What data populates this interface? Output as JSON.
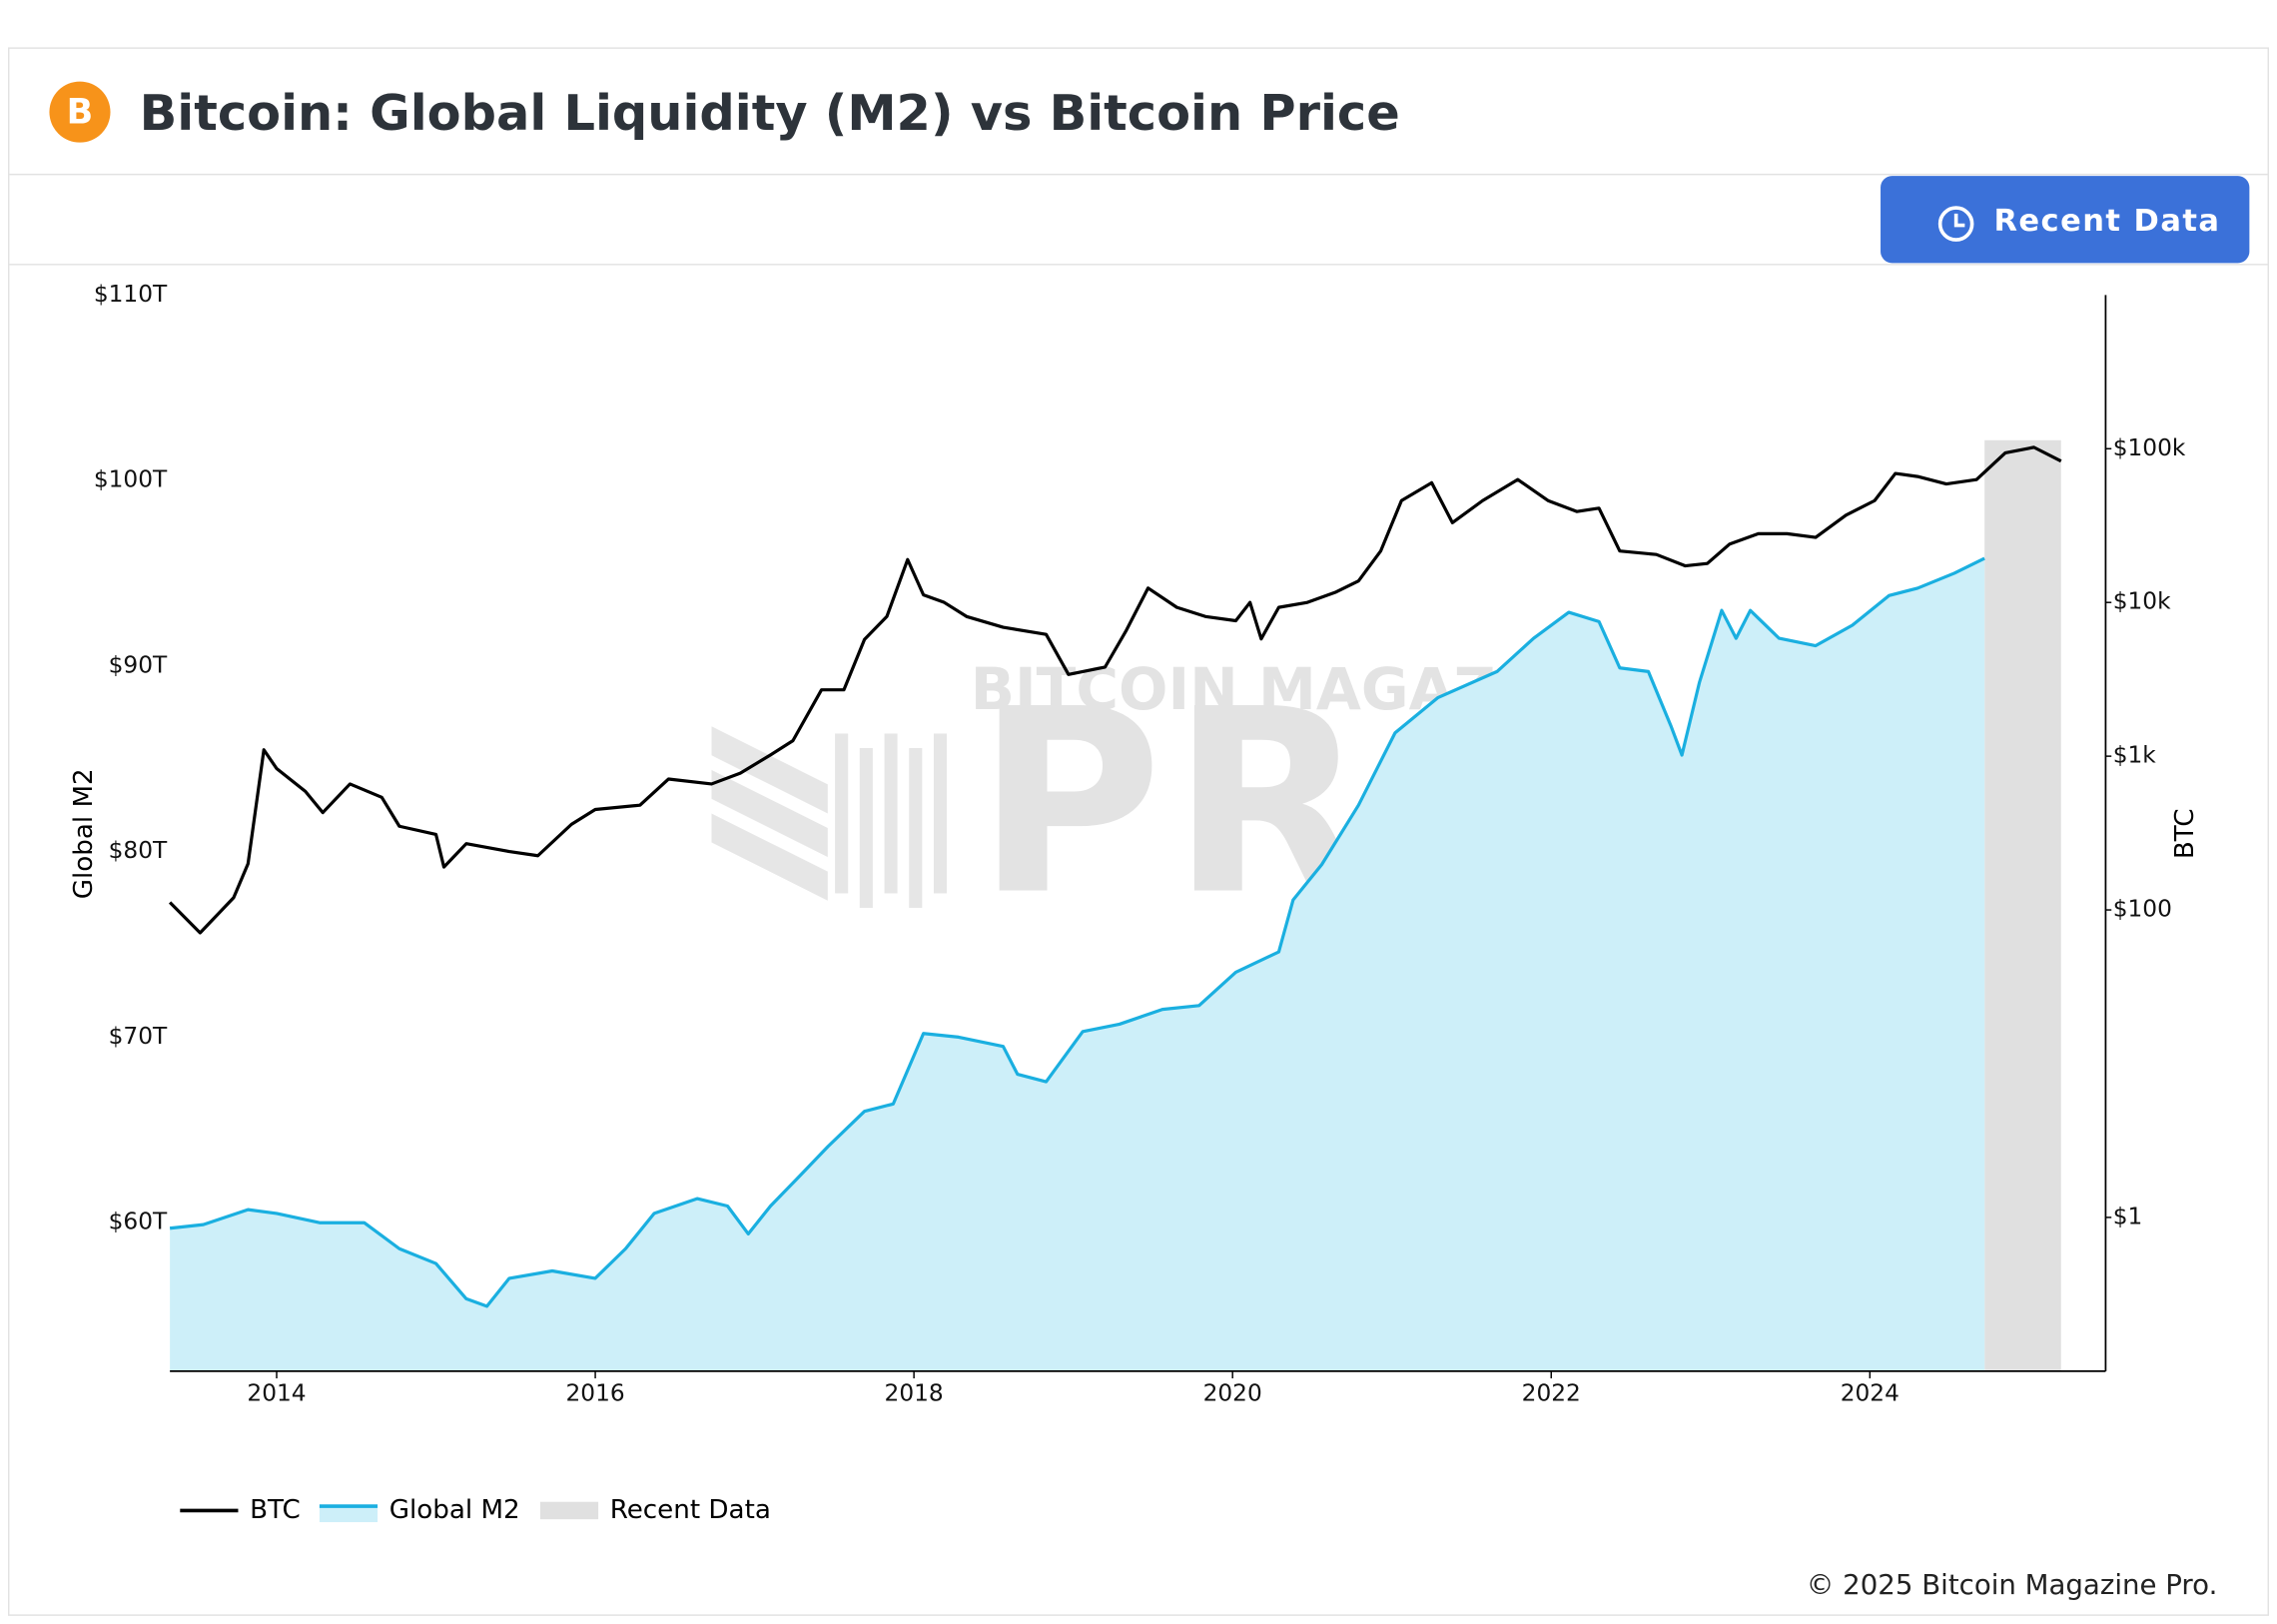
{
  "header": {
    "title": "Bitcoin: Global Liquidity (M2) vs Bitcoin Price",
    "button": "Recent Data"
  },
  "footer": "© 2025 Bitcoin Magazine Pro.",
  "watermark": [
    "BITCOIN MAGAZINE",
    "PRO"
  ],
  "chart_data": {
    "type": "line",
    "ylabel": "Global M2",
    "y2label": "BTC",
    "xlim": [
      2013.33,
      2025.48
    ],
    "xticks": [
      2014,
      2016,
      2018,
      2020,
      2022,
      2024
    ],
    "ylim": [
      52,
      110
    ],
    "yticks": [
      {
        "value": 60,
        "label": "$60T"
      },
      {
        "value": 70,
        "label": "$70T"
      },
      {
        "value": 80,
        "label": "$80T"
      },
      {
        "value": 90,
        "label": "$90T"
      },
      {
        "value": 100,
        "label": "$100T"
      },
      {
        "value": 110,
        "label": "$110T"
      }
    ],
    "y2lim": [
      0.1,
      1000000
    ],
    "y2scale": "log",
    "y2ticks": [
      {
        "value": 1,
        "label": "$1"
      },
      {
        "value": 100,
        "label": "$100"
      },
      {
        "value": 1000,
        "label": "$1k"
      },
      {
        "value": 10000,
        "label": "$10k"
      },
      {
        "value": 100000,
        "label": "$100k"
      }
    ],
    "shaded_region": {
      "name": "Recent Data",
      "x": [
        2024.72,
        2025.2
      ],
      "color": "#e0e0e0"
    },
    "series": [
      {
        "name": "BTC",
        "color": "#000000",
        "axis": "y2",
        "x": [
          2013.33,
          2013.52,
          2013.73,
          2013.82,
          2013.92,
          2014.0,
          2014.18,
          2014.29,
          2014.46,
          2014.66,
          2014.77,
          2015.0,
          2015.05,
          2015.19,
          2015.46,
          2015.64,
          2015.85,
          2016.0,
          2016.28,
          2016.46,
          2016.73,
          2016.91,
          2017.1,
          2017.24,
          2017.42,
          2017.56,
          2017.69,
          2017.83,
          2017.96,
          2018.06,
          2018.19,
          2018.33,
          2018.56,
          2018.83,
          2018.97,
          2019.2,
          2019.33,
          2019.47,
          2019.65,
          2019.83,
          2020.02,
          2020.11,
          2020.18,
          2020.29,
          2020.47,
          2020.65,
          2020.79,
          2020.93,
          2021.06,
          2021.25,
          2021.38,
          2021.57,
          2021.79,
          2021.98,
          2022.16,
          2022.3,
          2022.43,
          2022.66,
          2022.84,
          2022.98,
          2023.12,
          2023.3,
          2023.48,
          2023.66,
          2023.85,
          2024.03,
          2024.16,
          2024.3,
          2024.48,
          2024.67,
          2024.85,
          2025.03,
          2025.2
        ],
        "values": [
          112,
          71,
          120,
          200,
          1100,
          830,
          590,
          430,
          660,
          540,
          350,
          310,
          190,
          270,
          240,
          225,
          360,
          450,
          480,
          710,
          660,
          775,
          1020,
          1260,
          2700,
          2700,
          5750,
          8100,
          19000,
          11200,
          10000,
          8100,
          6900,
          6200,
          3400,
          3800,
          6500,
          12400,
          9300,
          8100,
          7600,
          10000,
          5800,
          9300,
          10000,
          11700,
          13800,
          21600,
          46000,
          60000,
          33000,
          46000,
          63000,
          46000,
          39000,
          41000,
          21600,
          20500,
          17300,
          17900,
          24000,
          28000,
          28000,
          26500,
          37000,
          46000,
          69000,
          66000,
          59000,
          63000,
          94000,
          102000,
          83000
        ]
      },
      {
        "name": "Global M2",
        "color": "#1aafe0",
        "fill": "#cdeff9",
        "axis": "y",
        "x": [
          2013.33,
          2013.54,
          2013.82,
          2014.0,
          2014.27,
          2014.55,
          2014.77,
          2015.0,
          2015.19,
          2015.32,
          2015.46,
          2015.73,
          2016.0,
          2016.19,
          2016.37,
          2016.64,
          2016.83,
          2016.96,
          2017.1,
          2017.28,
          2017.46,
          2017.69,
          2017.87,
          2018.06,
          2018.28,
          2018.56,
          2018.65,
          2018.83,
          2019.06,
          2019.29,
          2019.56,
          2019.79,
          2020.02,
          2020.29,
          2020.38,
          2020.56,
          2020.79,
          2021.02,
          2021.29,
          2021.66,
          2021.89,
          2022.11,
          2022.3,
          2022.43,
          2022.61,
          2022.75,
          2022.82,
          2022.93,
          2023.07,
          2023.16,
          2023.25,
          2023.43,
          2023.66,
          2023.89,
          2024.12,
          2024.3,
          2024.53,
          2024.72
        ],
        "values": [
          59.7,
          59.9,
          60.7,
          60.5,
          60.0,
          60.0,
          58.6,
          57.8,
          55.9,
          55.5,
          57.0,
          57.4,
          57.0,
          58.6,
          60.5,
          61.3,
          60.9,
          59.4,
          60.9,
          62.5,
          64.1,
          66.0,
          66.4,
          70.2,
          70.0,
          69.5,
          68.0,
          67.6,
          70.3,
          70.7,
          71.5,
          71.7,
          73.5,
          74.6,
          77.4,
          79.3,
          82.5,
          86.4,
          88.3,
          89.7,
          91.5,
          92.9,
          92.4,
          89.9,
          89.7,
          86.8,
          85.2,
          89.1,
          93.0,
          91.5,
          93.0,
          91.5,
          91.1,
          92.2,
          93.8,
          94.2,
          95.0,
          95.8
        ]
      }
    ]
  }
}
